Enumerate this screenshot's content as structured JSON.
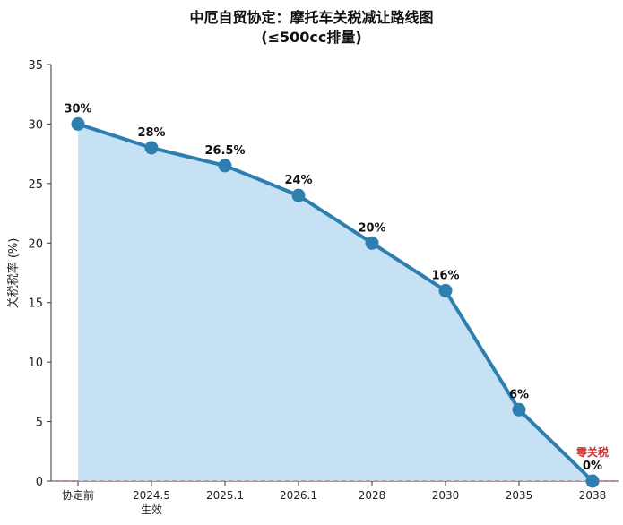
{
  "chart_data": {
    "type": "area",
    "title_line1": "中厄自贸协定：摩托车关税减让路线图",
    "title_line2": "(≤500cc排量)",
    "xlabel": "",
    "ylabel": "关税税率 (%)",
    "ylim": [
      0,
      35
    ],
    "yticks": [
      "0",
      "5",
      "10",
      "15",
      "20",
      "25",
      "30",
      "35"
    ],
    "categories": [
      "协定前",
      "2024.5",
      "2025.1",
      "2026.1",
      "2028",
      "2030",
      "2035",
      "2038"
    ],
    "category_sublabels": [
      "",
      "生效",
      "",
      "",
      "",
      "",
      "",
      ""
    ],
    "values": [
      30,
      28,
      26.5,
      24,
      20,
      16,
      6,
      0
    ],
    "data_labels": [
      "30%",
      "28%",
      "26.5%",
      "24%",
      "20%",
      "16%",
      "6%",
      "0%"
    ],
    "annotation": "零关税",
    "grid": false,
    "colors": {
      "line": "#2d7fb0",
      "fill": "#c2dff2",
      "annotation": "#d62728",
      "baseline": "#d06a6a"
    }
  }
}
